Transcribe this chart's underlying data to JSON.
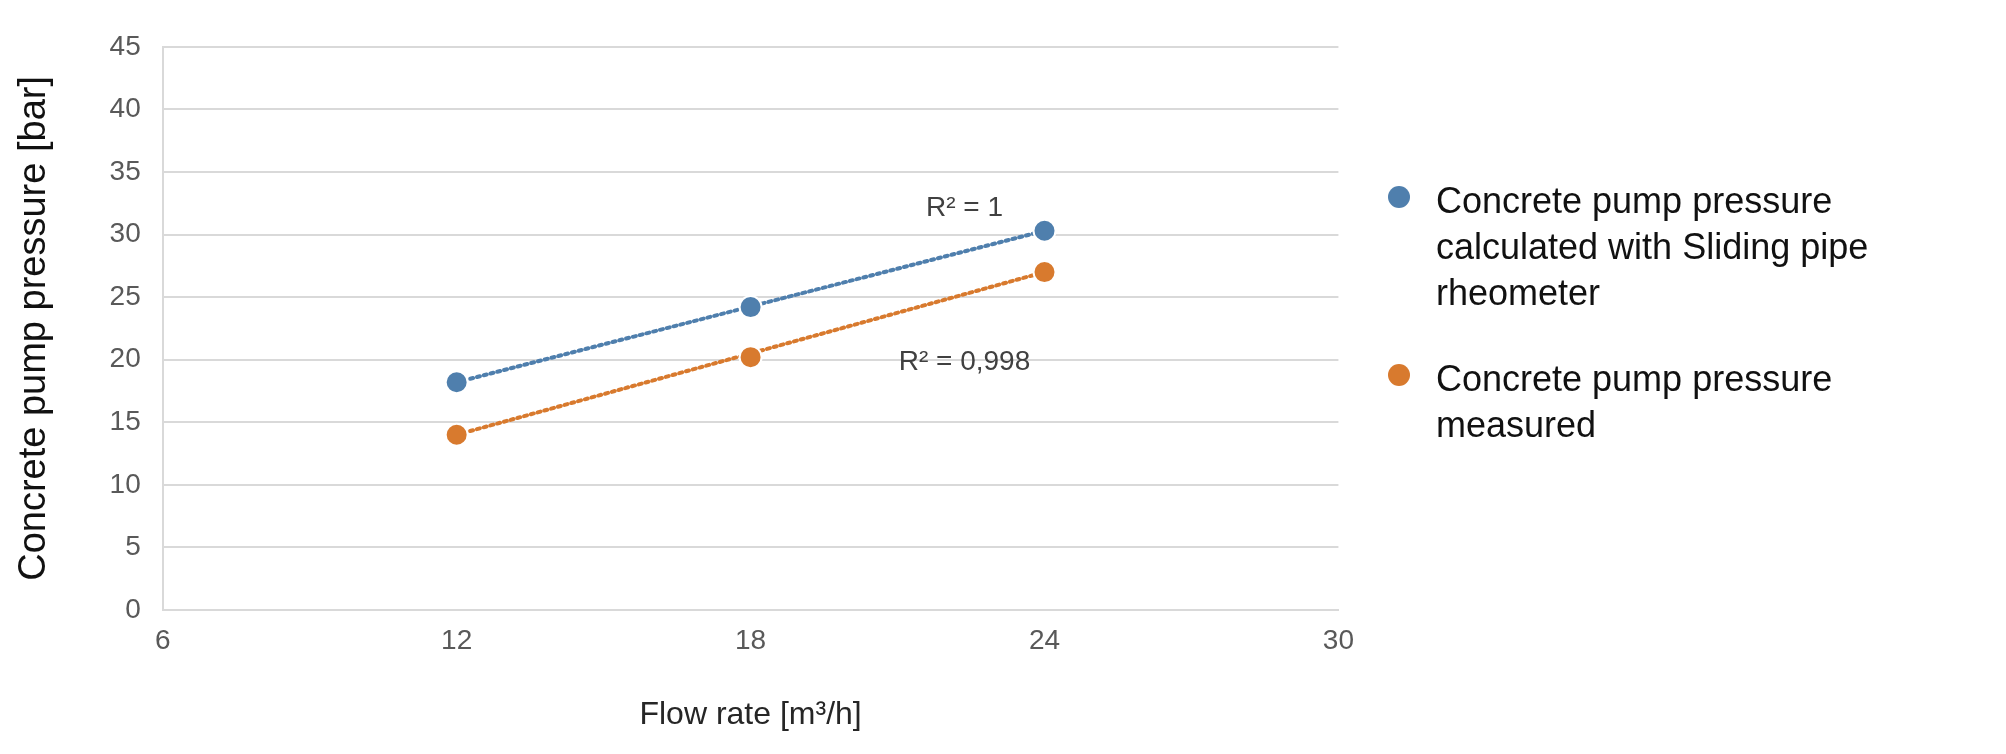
{
  "chart_data": {
    "type": "scatter",
    "xlabel": "Flow rate [m³/h]",
    "ylabel": "Concrete pump pressure [bar]",
    "xlim": [
      6,
      30
    ],
    "xticks": [
      6,
      12,
      18,
      24,
      30
    ],
    "ylim": [
      0,
      45
    ],
    "yticks": [
      0,
      5,
      10,
      15,
      20,
      25,
      30,
      35,
      40,
      45
    ],
    "grid": "y",
    "legend": "right",
    "series": [
      {
        "name": "Concrete pump pressure calculated with Sliding pipe rheometer",
        "color": "#4f7fad",
        "marker": "circle",
        "x": [
          12,
          18,
          24
        ],
        "values": [
          18.2,
          24.2,
          30.3
        ]
      },
      {
        "name": "Concrete pump pressure measured",
        "color": "#d87a2e",
        "marker": "circle",
        "x": [
          12,
          18,
          24
        ],
        "values": [
          14,
          20.2,
          27
        ]
      },
      {
        "type": "line",
        "line_style": "dotted",
        "color": "#4f7fad",
        "x": [
          12,
          24
        ],
        "values": [
          18.2,
          30.3
        ]
      },
      {
        "type": "line",
        "line_style": "dotted",
        "color": "#d87a2e",
        "x": [
          12,
          24
        ],
        "values": [
          14,
          27
        ]
      }
    ],
    "annotations": [
      "R² = 1",
      "R² = 0,998"
    ]
  }
}
